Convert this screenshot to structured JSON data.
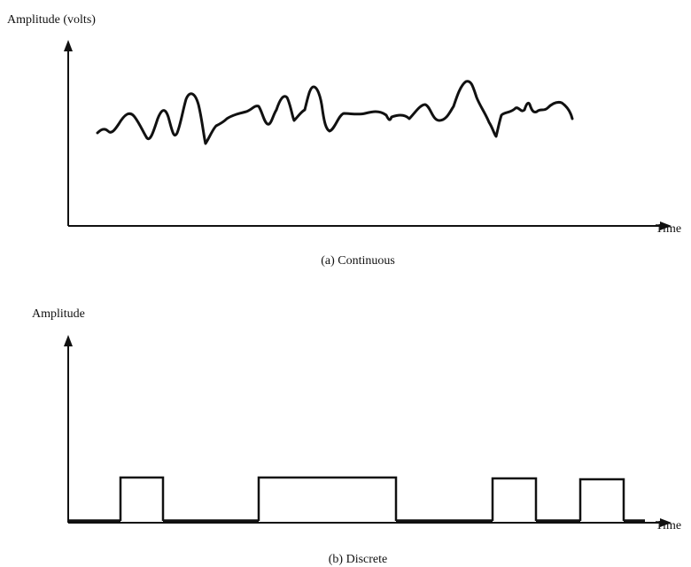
{
  "panel_a": {
    "y_label": "Amplitude (volts)",
    "x_label": "Time",
    "caption": "(a) Continuous"
  },
  "panel_b": {
    "y_label": "Amplitude",
    "x_label": "Time",
    "caption": "(b) Discrete"
  }
}
